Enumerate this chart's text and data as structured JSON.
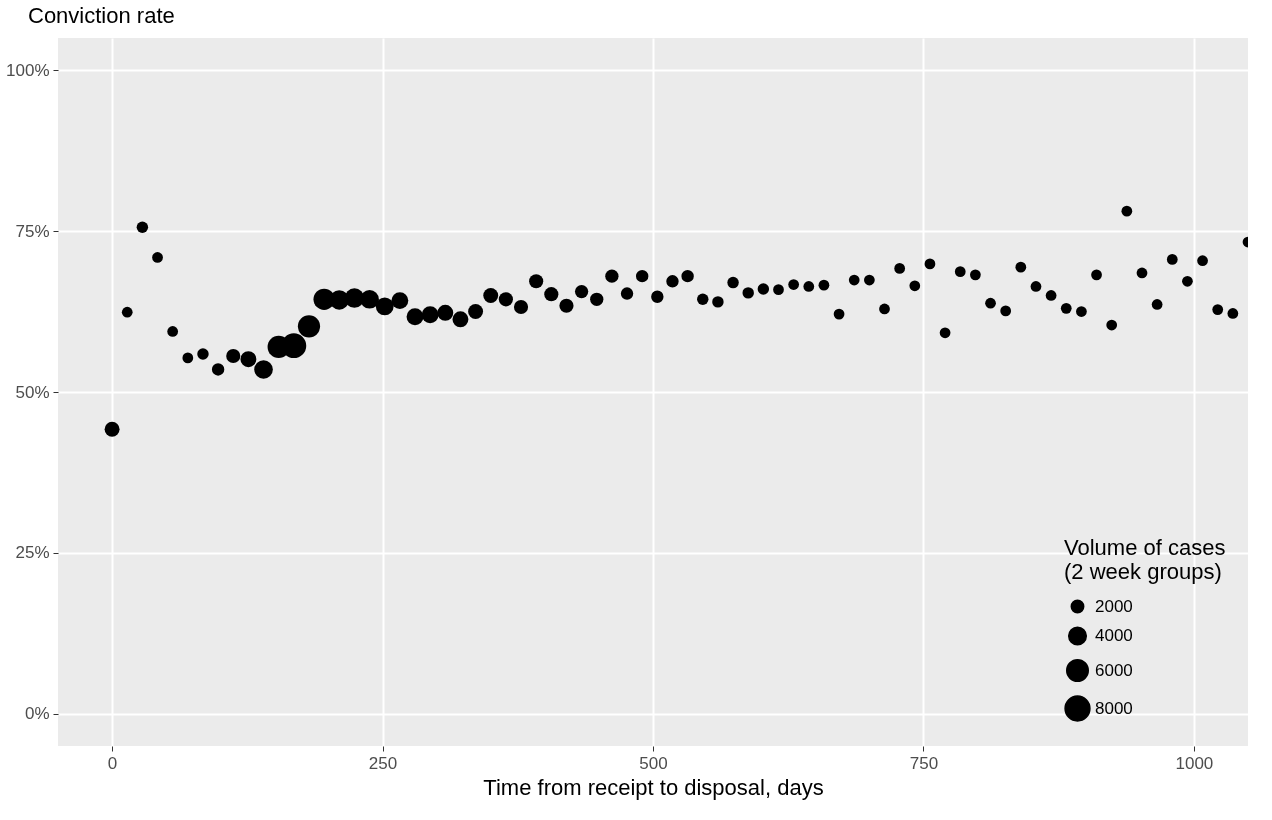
{
  "chart_data": {
    "type": "bubble",
    "title": "Conviction rate",
    "xlabel": "Time from receipt to disposal, days",
    "legend_title": "Volume of cases\n(2 week groups)",
    "x": [
      0,
      14,
      28,
      42,
      56,
      70,
      84,
      98,
      112,
      126,
      140,
      154,
      168,
      182,
      196,
      210,
      224,
      238,
      252,
      266,
      280,
      294,
      308,
      322,
      336,
      350,
      364,
      378,
      392,
      406,
      420,
      434,
      448,
      462,
      476,
      490,
      504,
      518,
      532,
      546,
      560,
      574,
      588,
      602,
      616,
      630,
      644,
      658,
      672,
      686,
      700,
      714,
      728,
      742,
      756,
      770,
      784,
      798,
      812,
      826,
      840,
      854,
      868,
      882,
      896,
      910,
      924,
      938,
      952,
      966,
      980,
      994,
      1008,
      1022,
      1036,
      1050
    ],
    "series": [
      {
        "color": "#000000",
        "values": [
          44.2,
          62.4,
          75.6,
          70.9,
          59.4,
          55.3,
          55.9,
          53.5,
          55.6,
          55.1,
          53.5,
          57.0,
          57.2,
          60.2,
          64.4,
          64.3,
          64.6,
          64.4,
          63.3,
          64.2,
          61.7,
          62.0,
          62.3,
          61.3,
          62.5,
          65.0,
          64.4,
          63.2,
          67.2,
          65.2,
          63.4,
          65.6,
          64.4,
          68.0,
          65.3,
          68.0,
          64.8,
          67.2,
          68.0,
          64.4,
          64.0,
          67.0,
          65.4,
          66.0,
          65.9,
          66.7,
          66.4,
          66.6,
          62.1,
          67.4,
          67.4,
          62.9,
          69.2,
          66.5,
          69.9,
          59.2,
          68.7,
          68.2,
          63.8,
          62.6,
          69.4,
          66.4,
          65.0,
          63.0,
          62.5,
          68.2,
          60.4,
          78.1,
          68.5,
          63.6,
          70.6,
          67.2,
          70.4,
          62.8,
          62.2,
          73.3
        ],
        "sizes": [
          2900,
          1500,
          1700,
          1500,
          1500,
          1500,
          1700,
          2000,
          2600,
          3300,
          4500,
          6400,
          8000,
          6400,
          5900,
          4900,
          4900,
          4500,
          4100,
          3700,
          3700,
          3700,
          3300,
          3300,
          2900,
          2900,
          2600,
          2600,
          2600,
          2600,
          2600,
          2300,
          2300,
          2300,
          2000,
          2000,
          2000,
          2000,
          2000,
          1700,
          1700,
          1700,
          1700,
          1700,
          1500,
          1500,
          1500,
          1500,
          1500,
          1500,
          1500,
          1500,
          1500,
          1500,
          1500,
          1500,
          1500,
          1500,
          1500,
          1500,
          1500,
          1500,
          1500,
          1500,
          1500,
          1500,
          1500,
          1500,
          1500,
          1500,
          1500,
          1500,
          1500,
          1500,
          1500,
          1500
        ]
      }
    ],
    "size_legend": [
      2000,
      4000,
      6000,
      8000
    ],
    "xlim": [
      -50,
      1050
    ],
    "xticks": [
      0,
      250,
      500,
      750,
      1000
    ],
    "ylim": [
      -5,
      105
    ],
    "yticks": [
      {
        "value": 0,
        "label": "0%"
      },
      {
        "value": 25,
        "label": "25%"
      },
      {
        "value": 50,
        "label": "50%"
      },
      {
        "value": 75,
        "label": "75%"
      },
      {
        "value": 100,
        "label": "100%"
      }
    ],
    "grid": true,
    "marker": "circle"
  }
}
